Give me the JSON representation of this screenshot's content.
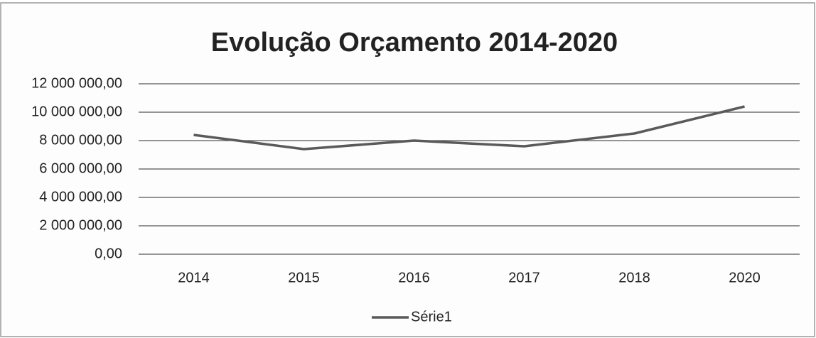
{
  "chart_data": {
    "type": "line",
    "title": "Evolução Orçamento 2014-2020",
    "categories": [
      "2014",
      "2015",
      "2016",
      "2017",
      "2018",
      "2020"
    ],
    "series": [
      {
        "name": "Série1",
        "color": "#5a5a5a",
        "values": [
          8400000,
          7400000,
          8000000,
          7600000,
          8500000,
          10400000
        ]
      }
    ],
    "ylim": [
      0,
      12000000
    ],
    "yticks": [
      {
        "value": 0,
        "label": "0,00"
      },
      {
        "value": 2000000,
        "label": "2 000 000,00"
      },
      {
        "value": 4000000,
        "label": "4 000 000,00"
      },
      {
        "value": 6000000,
        "label": "6 000 000,00"
      },
      {
        "value": 8000000,
        "label": "8 000 000,00"
      },
      {
        "value": 10000000,
        "label": "10 000 000,00"
      },
      {
        "value": 12000000,
        "label": "12 000 000,00"
      }
    ],
    "grid": true,
    "legend": "bottom"
  }
}
